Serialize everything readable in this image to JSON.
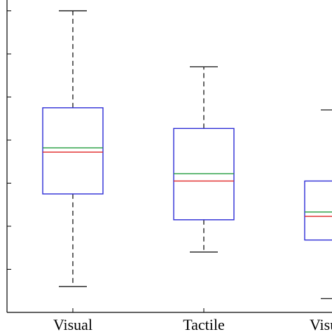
{
  "chart_data": {
    "type": "box",
    "categories": [
      "Visual",
      "Tactile",
      "Visuo-T"
    ],
    "series": [
      {
        "category": "Visual",
        "min": 0.6,
        "q1": 2.75,
        "median": 3.72,
        "mean": 3.82,
        "q3": 4.75,
        "max": 7.0
      },
      {
        "category": "Tactile",
        "min": 1.4,
        "q1": 2.15,
        "median": 3.05,
        "mean": 3.22,
        "q3": 4.27,
        "max": 5.7
      },
      {
        "category": "Visuo-T",
        "min": 0.32,
        "q1": 1.68,
        "median": 2.23,
        "mean": 2.33,
        "q3": 3.05,
        "max": 4.7
      }
    ],
    "ylim": [
      0.0,
      7.45
    ],
    "yticks": [
      1,
      2,
      3,
      4,
      5,
      6,
      7
    ],
    "ytick_labels_visible": false,
    "colors": {
      "box": "#2b2bd6",
      "median": "#e02424",
      "mean": "#1f9a3a",
      "whisker": "#000000"
    },
    "xlabel": "",
    "ylabel": "",
    "title": "",
    "grid": false
  }
}
